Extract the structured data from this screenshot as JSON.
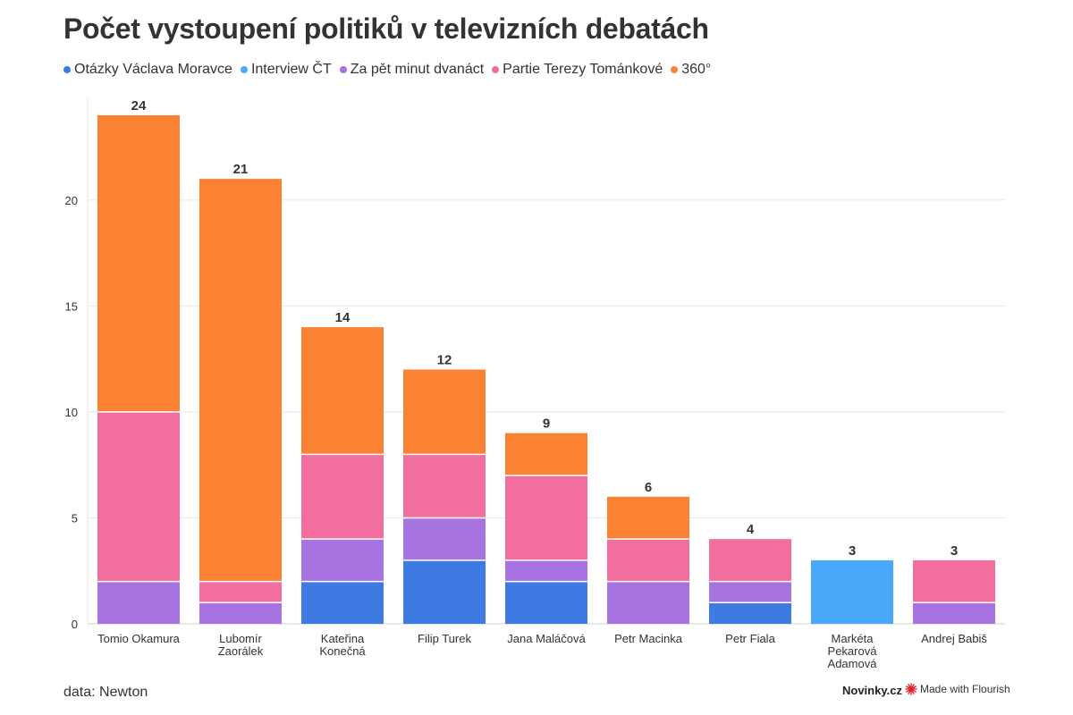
{
  "title": "Počet vystoupení politiků v televizních debatách",
  "source": "data: Newton",
  "brand": "Novinky.cz",
  "credit": "Made with Flourish",
  "colors": {
    "grid": "#e6e6e6",
    "axis_text": "#333333",
    "total_text": "#333333",
    "brand_accent": "#e0242b"
  },
  "chart_data": {
    "type": "bar",
    "stacked": true,
    "categories": [
      "Tomio Okamura",
      "Lubomír Zaorálek",
      "Kateřina Konečná",
      "Filip Turek",
      "Jana Maláčová",
      "Petr Macinka",
      "Petr Fiala",
      "Markéta Pekarová Adamová",
      "Andrej Babiš"
    ],
    "category_label_lines": [
      [
        "Tomio Okamura"
      ],
      [
        "Lubomír",
        "Zaorálek"
      ],
      [
        "Kateřina",
        "Konečná"
      ],
      [
        "Filip Turek"
      ],
      [
        "Jana Maláčová"
      ],
      [
        "Petr Macinka"
      ],
      [
        "Petr Fiala"
      ],
      [
        "Markéta",
        "Pekarová",
        "Adamová"
      ],
      [
        "Andrej Babiš"
      ]
    ],
    "series": [
      {
        "name": "Otázky Václava Moravce",
        "color": "#3d7be3",
        "values": [
          0,
          0,
          2,
          3,
          2,
          0,
          1,
          0,
          0
        ]
      },
      {
        "name": "Interview ČT",
        "color": "#4aa8fb",
        "values": [
          0,
          0,
          0,
          0,
          0,
          0,
          0,
          3,
          0
        ]
      },
      {
        "name": "Za pět minut dvanáct",
        "color": "#a673e0",
        "values": [
          2,
          1,
          2,
          2,
          1,
          2,
          1,
          0,
          1
        ]
      },
      {
        "name": "Partie Terezy Tománkové",
        "color": "#f26e9e",
        "values": [
          8,
          1,
          4,
          3,
          4,
          2,
          2,
          0,
          2
        ]
      },
      {
        "name": "360°",
        "color": "#fb8233",
        "values": [
          14,
          19,
          6,
          4,
          2,
          2,
          0,
          0,
          0
        ]
      }
    ],
    "totals": [
      24,
      21,
      14,
      12,
      9,
      6,
      4,
      3,
      3
    ],
    "y_ticks": [
      0,
      5,
      10,
      15,
      20
    ],
    "ylim": [
      0,
      24
    ],
    "grid": true,
    "legend_position": "top-left",
    "xlabel": "",
    "ylabel": ""
  }
}
